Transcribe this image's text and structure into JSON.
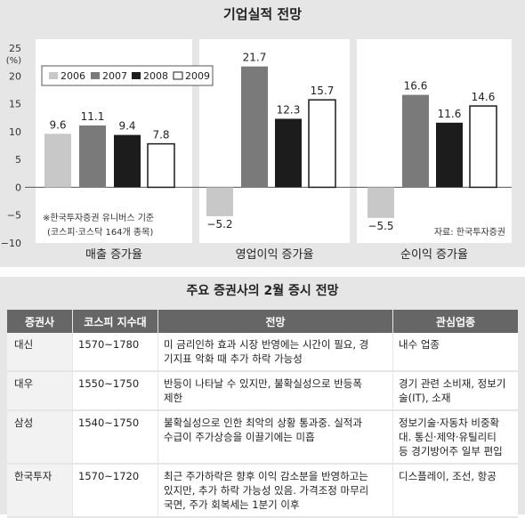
{
  "chart_data": {
    "type": "bar",
    "title": "기업실적 전망",
    "ylabel": "(%)",
    "ylim": [
      -10,
      25
    ],
    "yticks": [
      25,
      20,
      15,
      10,
      5,
      0,
      -5,
      -10
    ],
    "ytick_labels": [
      "25",
      "20",
      "15",
      "10",
      "5",
      "0",
      "−5",
      "−10"
    ],
    "categories": [
      "매출 증가율",
      "영업이익 증가율",
      "순이익 증가율"
    ],
    "series": [
      {
        "name": "2006",
        "color": "#c8c8c8",
        "values": [
          9.6,
          -5.2,
          -5.5
        ],
        "labels": [
          "9.6",
          "−5.2",
          "−5.5"
        ]
      },
      {
        "name": "2007",
        "color": "#7a7a7a",
        "values": [
          11.1,
          21.7,
          16.6
        ],
        "labels": [
          "11.1",
          "21.7",
          "16.6"
        ]
      },
      {
        "name": "2008",
        "color": "#1c1c1c",
        "values": [
          9.4,
          12.3,
          11.6
        ],
        "labels": [
          "9.4",
          "12.3",
          "11.6"
        ]
      },
      {
        "name": "2009",
        "color": "#ffffff",
        "values": [
          7.8,
          15.7,
          14.6
        ],
        "labels": [
          "7.8",
          "15.7",
          "14.6"
        ]
      }
    ],
    "legend_position": "top-left",
    "note_lines": [
      "※한국투자증권 유니버스 기준",
      "(코스피·코스닥 164개 종목)"
    ],
    "source": "자료: 한국투자증권"
  },
  "table": {
    "title": "주요 증권사의 2월 증시 전망",
    "headers": [
      "증권사",
      "코스피 지수대",
      "전망",
      "관심업종"
    ],
    "rows": [
      {
        "firm": "대신",
        "range": "1570~1780",
        "outlook": [
          "미 금리인하 효과 시장 반영에는 시간이 필요, 경",
          "기지표 악화 때 추가 하락 가능성"
        ],
        "sectors": [
          "내수 업종"
        ]
      },
      {
        "firm": "대우",
        "range": "1550~1750",
        "outlook": [
          "반등이 나타날 수 있지만, 불확실성으로 반등폭",
          "제한"
        ],
        "sectors": [
          "경기 관련 소비재, 정보기",
          "술(IT), 소재"
        ]
      },
      {
        "firm": "삼성",
        "range": "1540~1750",
        "outlook": [
          "불확실성으로 인한 최악의 상황 통과중. 실적과",
          "수급이 주가상승을 이끌기에는 미흡"
        ],
        "sectors": [
          "정보기술·자동차 비중확",
          "대. 통신·제약·유틸리티",
          "등 경기방어주 일부 편입"
        ]
      },
      {
        "firm": "한국투자",
        "range": "1570~1720",
        "outlook": [
          "최근 주가하락은 향후 이익 감소분을 반영하고는",
          "있지만, 추가 하락 가능성 있음. 가격조정 마무리",
          "국면, 주가 회복세는 1분기 이후"
        ],
        "sectors": [
          "디스플레이, 조선, 항공"
        ]
      }
    ]
  }
}
